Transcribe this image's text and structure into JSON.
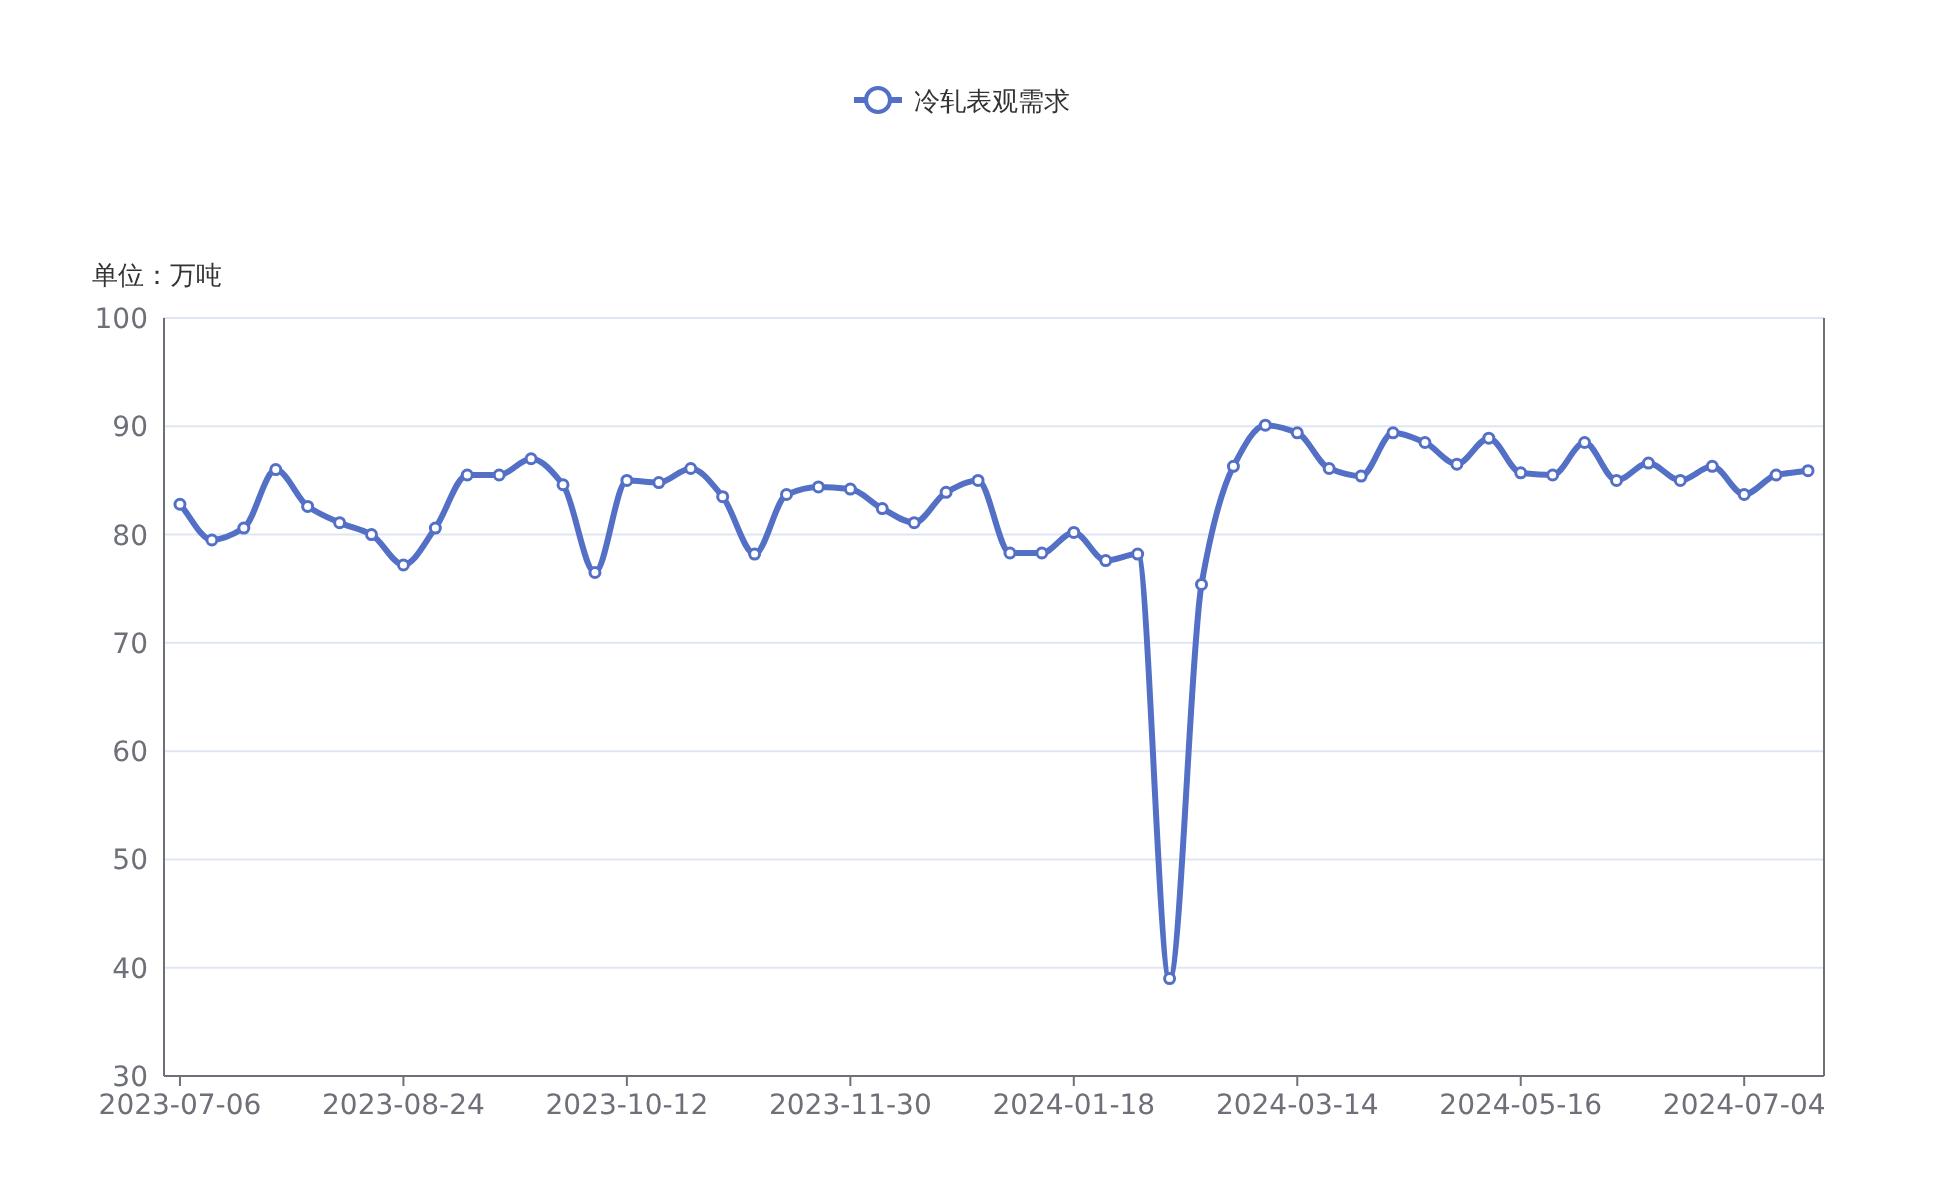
{
  "chart_data": {
    "type": "line",
    "ylabel": "单位：万吨",
    "categories": [
      "2023-07-06",
      null,
      null,
      null,
      null,
      null,
      null,
      "2023-08-24",
      null,
      null,
      null,
      null,
      null,
      null,
      "2023-10-12",
      null,
      null,
      null,
      null,
      null,
      null,
      "2023-11-30",
      null,
      null,
      null,
      null,
      null,
      null,
      "2024-01-18",
      null,
      null,
      null,
      null,
      null,
      null,
      "2024-03-14",
      null,
      null,
      null,
      null,
      null,
      null,
      "2024-05-16",
      null,
      null,
      null,
      null,
      null,
      null,
      "2024-07-04",
      null,
      null
    ],
    "series": [
      {
        "name": "冷轧表观需求",
        "color": "#5470c6",
        "values": [
          82.8,
          79.5,
          80.6,
          86,
          82.6,
          81.1,
          80,
          77.2,
          80.6,
          85.5,
          85.5,
          87,
          84.6,
          76.5,
          85,
          84.8,
          86.1,
          83.5,
          78.2,
          83.7,
          84.4,
          84.2,
          82.4,
          81.1,
          83.9,
          85,
          78.3,
          78.3,
          80.2,
          77.6,
          78.2,
          39,
          75.4,
          86.3,
          90.1,
          89.4,
          86.1,
          85.4,
          89.4,
          88.5,
          86.5,
          88.9,
          85.7,
          85.5,
          88.5,
          85,
          86.6,
          85,
          86.3,
          83.7,
          85.5,
          85.9
        ]
      }
    ],
    "ylim": [
      30,
      100
    ],
    "yticks": [
      30,
      40,
      50,
      60,
      70,
      80,
      90,
      100
    ],
    "grid": "y",
    "legend": "top",
    "marker": "circle",
    "line_style": "solid"
  }
}
